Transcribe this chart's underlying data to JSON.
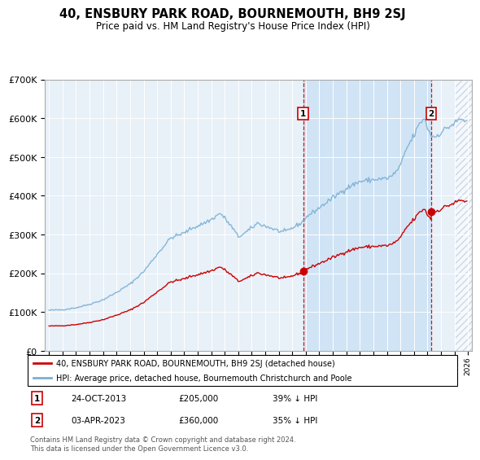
{
  "title": "40, ENSBURY PARK ROAD, BOURNEMOUTH, BH9 2SJ",
  "subtitle": "Price paid vs. HM Land Registry's House Price Index (HPI)",
  "legend_property": "40, ENSBURY PARK ROAD, BOURNEMOUTH, BH9 2SJ (detached house)",
  "legend_hpi": "HPI: Average price, detached house, Bournemouth Christchurch and Poole",
  "footer": "Contains HM Land Registry data © Crown copyright and database right 2024.\nThis data is licensed under the Open Government Licence v3.0.",
  "sale_info": [
    {
      "label": "1",
      "date": "24-OCT-2013",
      "price": "£205,000",
      "pct": "39% ↓ HPI"
    },
    {
      "label": "2",
      "date": "03-APR-2023",
      "price": "£360,000",
      "pct": "35% ↓ HPI"
    }
  ],
  "sale_dates_decimal": [
    2013.81,
    2023.27
  ],
  "sale_prices": [
    205000,
    360000
  ],
  "line_color_red": "#cc0000",
  "line_color_blue": "#7ab0d4",
  "bg_color_plot": "#e8f0f8",
  "bg_between_sales": "#d0e4f5",
  "ylim": [
    0,
    700000
  ],
  "yticks": [
    0,
    100000,
    200000,
    300000,
    400000,
    500000,
    600000,
    700000
  ],
  "xmin": 1994.7,
  "xmax": 2026.3
}
